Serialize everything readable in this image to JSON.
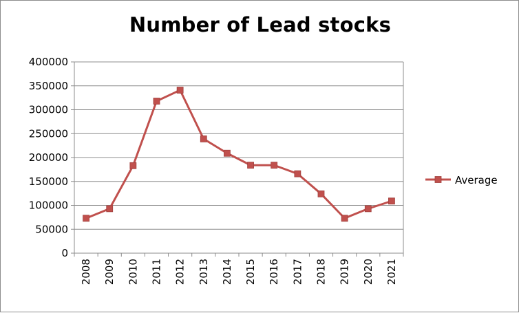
{
  "chart_data": {
    "type": "line",
    "title": "Number of Lead stocks",
    "xlabel": "",
    "ylabel": "",
    "categories": [
      "2008",
      "2009",
      "2010",
      "2011",
      "2012",
      "2013",
      "2014",
      "2015",
      "2016",
      "2017",
      "2018",
      "2019",
      "2020",
      "2021"
    ],
    "series": [
      {
        "name": "Average",
        "color": "#c0504d",
        "values": [
          73000,
          93000,
          183000,
          318000,
          341000,
          239000,
          209000,
          184000,
          184000,
          166000,
          124000,
          73000,
          93000,
          109000
        ]
      }
    ],
    "ylim": [
      0,
      400000
    ],
    "yticks": [
      "0",
      "50000",
      "100000",
      "150000",
      "200000",
      "250000",
      "300000",
      "350000",
      "400000"
    ],
    "grid": true,
    "legend_position": "right",
    "marker": "square-marker-icon"
  }
}
